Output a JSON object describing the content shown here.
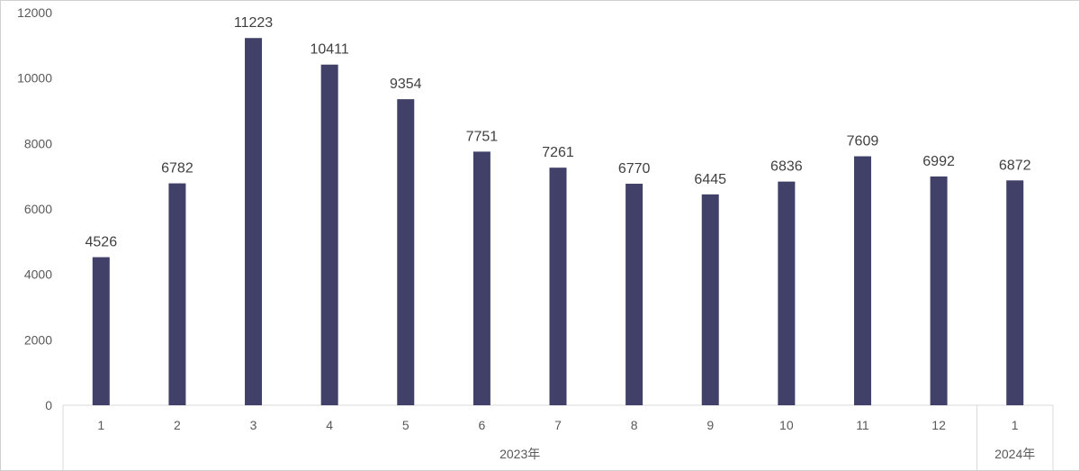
{
  "chart_data": {
    "type": "bar",
    "title": "",
    "xlabel": "",
    "ylabel": "",
    "ylim": [
      0,
      12000
    ],
    "yticks": [
      0,
      2000,
      4000,
      6000,
      8000,
      10000,
      12000
    ],
    "categories": [
      "1",
      "2",
      "3",
      "4",
      "5",
      "6",
      "7",
      "8",
      "9",
      "10",
      "11",
      "12",
      "1"
    ],
    "groups": [
      {
        "label": "2023年",
        "count": 12
      },
      {
        "label": "2024年",
        "count": 1
      }
    ],
    "series": [
      {
        "values": [
          4526,
          6782,
          11223,
          10411,
          9354,
          7751,
          7261,
          6770,
          6445,
          6836,
          7609,
          6992,
          6872
        ]
      }
    ],
    "bar_color": "#404068",
    "grid": false,
    "legend": "none"
  }
}
